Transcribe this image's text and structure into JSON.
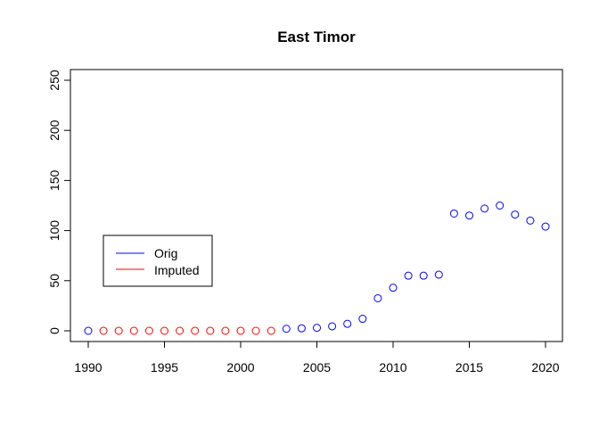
{
  "chart_data": {
    "type": "scatter",
    "title": "East Timor",
    "xlabel": "",
    "ylabel": "",
    "xlim": [
      1990,
      2020
    ],
    "ylim": [
      0,
      250
    ],
    "x_ticks": [
      "1990",
      "1995",
      "2000",
      "2005",
      "2010",
      "2015",
      "2020"
    ],
    "y_ticks": [
      "0",
      "50",
      "100",
      "150",
      "200",
      "250"
    ],
    "grid": false,
    "legend_position": "center-left",
    "series": [
      {
        "name": "Orig",
        "color": "#0000ff",
        "marker": "open-circle",
        "x": [
          1990,
          2003,
          2004,
          2005,
          2006,
          2007,
          2008,
          2009,
          2010,
          2011,
          2012,
          2013,
          2014,
          2015,
          2016,
          2017,
          2018,
          2019,
          2020
        ],
        "y": [
          0,
          2,
          2.5,
          3,
          4.5,
          7,
          12,
          32.5,
          43,
          55,
          55,
          56,
          117,
          115,
          122,
          125,
          116,
          110,
          104
        ]
      },
      {
        "name": "Imputed",
        "color": "#ff0000",
        "marker": "open-circle",
        "x": [
          1991,
          1992,
          1993,
          1994,
          1995,
          1996,
          1997,
          1998,
          1999,
          2000,
          2001,
          2002
        ],
        "y": [
          0,
          0,
          0,
          0,
          0,
          0,
          0,
          0,
          0,
          0,
          0,
          0
        ]
      }
    ]
  }
}
